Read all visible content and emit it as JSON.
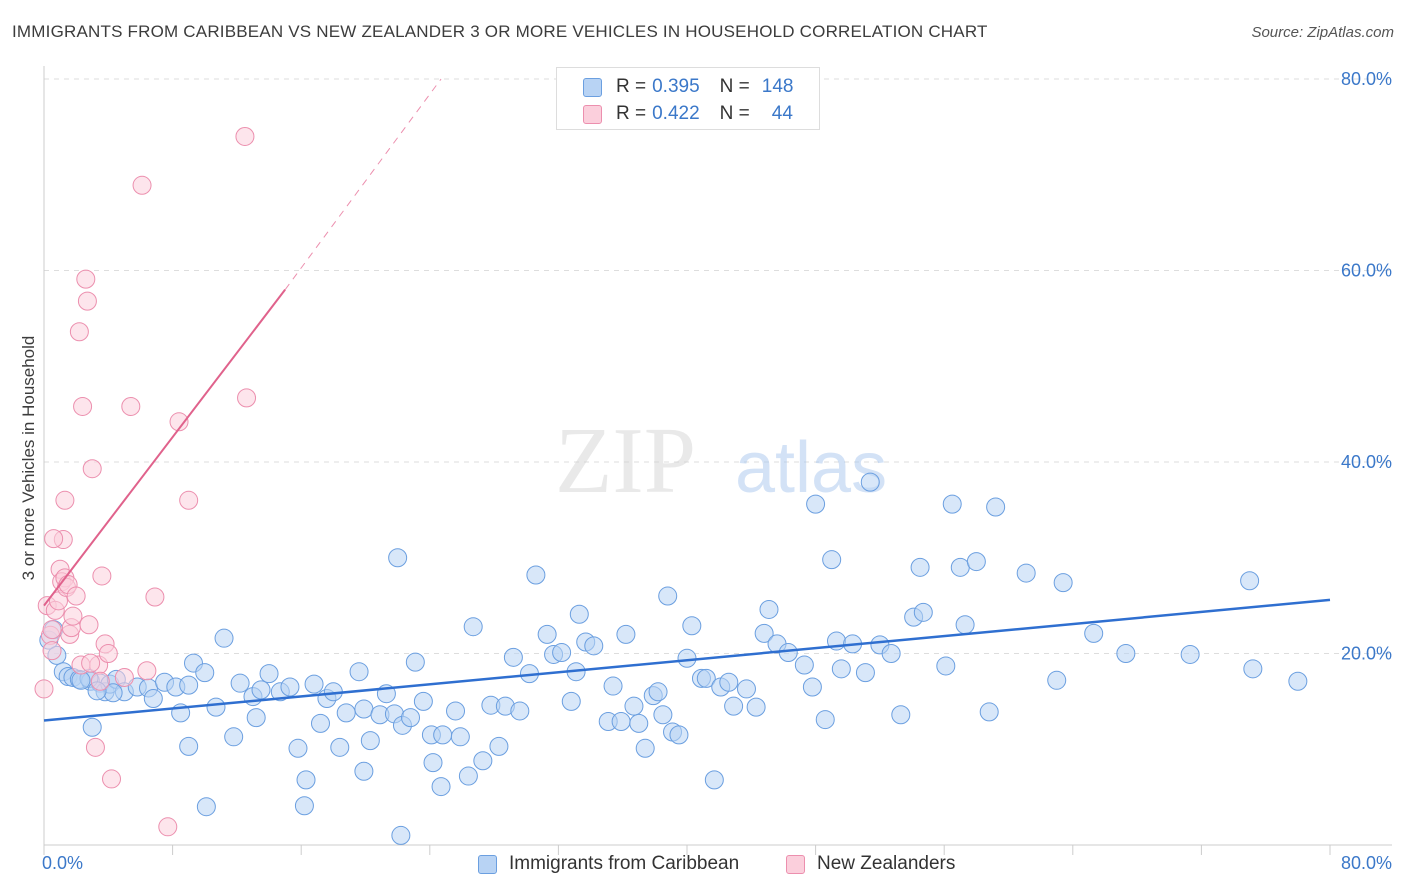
{
  "title": "IMMIGRANTS FROM CARIBBEAN VS NEW ZEALANDER 3 OR MORE VEHICLES IN HOUSEHOLD CORRELATION CHART",
  "source": "Source: ZipAtlas.com",
  "watermark": {
    "zip": "ZIP",
    "atlas": "atlas"
  },
  "legend": {
    "rows": [
      {
        "r_label": "R =",
        "r_value": "0.395",
        "n_label": "N =",
        "n_value": "148"
      },
      {
        "r_label": "R =",
        "r_value": "0.422",
        "n_label": "N =",
        "n_value": "44"
      }
    ]
  },
  "bottom_legend": {
    "series1": "Immigrants from Caribbean",
    "series2": "New Zealanders"
  },
  "colors": {
    "blue_fill": "#b8d3f4",
    "blue_stroke": "#6b9fe0",
    "blue_line": "#2f6fd0",
    "pink_fill": "#fbcfdc",
    "pink_stroke": "#ec8fae",
    "pink_line": "#e0628c",
    "tick_text": "#3b78c9"
  },
  "chart_data": {
    "type": "scatter",
    "title": "IMMIGRANTS FROM CARIBBEAN VS NEW ZEALANDER 3 OR MORE VEHICLES IN HOUSEHOLD CORRELATION CHART",
    "xlabel": "",
    "ylabel": "3 or more Vehicles in Household",
    "xlim": [
      0,
      80
    ],
    "ylim": [
      0,
      80
    ],
    "x_tick_labels": {
      "left": "0.0%",
      "right": "80.0%"
    },
    "y_ticks": [
      {
        "value": 20,
        "label": "20.0%"
      },
      {
        "value": 40,
        "label": "40.0%"
      },
      {
        "value": 60,
        "label": "60.0%"
      },
      {
        "value": 80,
        "label": "80.0%"
      }
    ],
    "grid": true,
    "legend_position": "top-center",
    "series": [
      {
        "name": "Immigrants from Caribbean",
        "R": 0.395,
        "N": 148,
        "trend": {
          "x": [
            0,
            80
          ],
          "y": [
            13.0,
            25.6
          ]
        },
        "points": [
          [
            0.3,
            21.4
          ],
          [
            0.6,
            22.5
          ],
          [
            0.8,
            19.8
          ],
          [
            1.2,
            18.1
          ],
          [
            1.5,
            17.6
          ],
          [
            1.8,
            17.5
          ],
          [
            2.2,
            17.3
          ],
          [
            2.9,
            17.1
          ],
          [
            3.5,
            16.9
          ],
          [
            3.8,
            16.0
          ],
          [
            4.1,
            16.8
          ],
          [
            4.5,
            17.3
          ],
          [
            5.0,
            16.0
          ],
          [
            5.8,
            16.5
          ],
          [
            6.5,
            16.4
          ],
          [
            3.0,
            12.3
          ],
          [
            2.8,
            17.4
          ],
          [
            2.3,
            17.2
          ],
          [
            4.3,
            15.9
          ],
          [
            3.3,
            16.1
          ],
          [
            6.8,
            15.3
          ],
          [
            7.5,
            17.0
          ],
          [
            8.2,
            16.5
          ],
          [
            9.0,
            16.7
          ],
          [
            9.3,
            19.0
          ],
          [
            10.0,
            18.0
          ],
          [
            10.7,
            14.4
          ],
          [
            11.2,
            21.6
          ],
          [
            11.8,
            11.3
          ],
          [
            12.2,
            16.9
          ],
          [
            13.0,
            15.5
          ],
          [
            13.5,
            16.2
          ],
          [
            14.0,
            17.9
          ],
          [
            13.2,
            13.3
          ],
          [
            14.7,
            16.0
          ],
          [
            15.3,
            16.5
          ],
          [
            15.8,
            10.1
          ],
          [
            16.8,
            16.8
          ],
          [
            17.2,
            12.7
          ],
          [
            17.6,
            15.3
          ],
          [
            18.4,
            10.2
          ],
          [
            18.8,
            13.8
          ],
          [
            19.6,
            18.1
          ],
          [
            19.9,
            14.2
          ],
          [
            20.3,
            10.9
          ],
          [
            20.9,
            13.6
          ],
          [
            21.3,
            15.8
          ],
          [
            21.8,
            13.7
          ],
          [
            22.0,
            30.0
          ],
          [
            22.3,
            12.5
          ],
          [
            22.8,
            13.3
          ],
          [
            23.1,
            19.1
          ],
          [
            23.6,
            15.0
          ],
          [
            24.1,
            11.5
          ],
          [
            24.8,
            11.5
          ],
          [
            25.6,
            14.0
          ],
          [
            25.9,
            11.3
          ],
          [
            26.4,
            7.2
          ],
          [
            26.7,
            22.8
          ],
          [
            27.3,
            8.8
          ],
          [
            27.8,
            14.6
          ],
          [
            28.3,
            10.3
          ],
          [
            28.7,
            14.5
          ],
          [
            29.2,
            19.6
          ],
          [
            29.6,
            14.0
          ],
          [
            30.2,
            17.9
          ],
          [
            30.6,
            28.2
          ],
          [
            31.3,
            22.0
          ],
          [
            31.7,
            19.9
          ],
          [
            32.2,
            20.1
          ],
          [
            32.8,
            15.0
          ],
          [
            33.1,
            18.1
          ],
          [
            33.3,
            24.1
          ],
          [
            33.7,
            21.2
          ],
          [
            34.2,
            20.8
          ],
          [
            35.1,
            12.9
          ],
          [
            35.4,
            16.6
          ],
          [
            35.9,
            12.9
          ],
          [
            36.2,
            22.0
          ],
          [
            36.7,
            14.5
          ],
          [
            37.0,
            12.7
          ],
          [
            37.4,
            10.1
          ],
          [
            37.9,
            15.6
          ],
          [
            38.2,
            16.0
          ],
          [
            38.5,
            13.6
          ],
          [
            38.8,
            26.0
          ],
          [
            39.1,
            11.8
          ],
          [
            39.5,
            11.5
          ],
          [
            40.0,
            19.5
          ],
          [
            40.3,
            22.9
          ],
          [
            40.9,
            17.4
          ],
          [
            41.2,
            17.4
          ],
          [
            41.7,
            6.8
          ],
          [
            42.1,
            16.5
          ],
          [
            42.6,
            17.0
          ],
          [
            42.9,
            14.5
          ],
          [
            43.7,
            16.3
          ],
          [
            44.3,
            14.4
          ],
          [
            44.8,
            22.1
          ],
          [
            45.1,
            24.6
          ],
          [
            45.6,
            21.0
          ],
          [
            46.3,
            20.1
          ],
          [
            47.3,
            18.8
          ],
          [
            47.8,
            16.5
          ],
          [
            48.0,
            35.6
          ],
          [
            48.6,
            13.1
          ],
          [
            49.0,
            29.8
          ],
          [
            49.3,
            21.3
          ],
          [
            49.6,
            18.4
          ],
          [
            50.3,
            21.0
          ],
          [
            51.1,
            18.0
          ],
          [
            51.4,
            37.9
          ],
          [
            52.0,
            20.9
          ],
          [
            52.7,
            20.0
          ],
          [
            53.3,
            13.6
          ],
          [
            54.1,
            23.8
          ],
          [
            54.5,
            29.0
          ],
          [
            54.7,
            24.3
          ],
          [
            56.1,
            18.7
          ],
          [
            56.5,
            35.6
          ],
          [
            57.0,
            29.0
          ],
          [
            57.3,
            23.0
          ],
          [
            58.0,
            29.6
          ],
          [
            58.8,
            13.9
          ],
          [
            59.2,
            35.3
          ],
          [
            61.1,
            28.4
          ],
          [
            63.0,
            17.2
          ],
          [
            63.4,
            27.4
          ],
          [
            65.3,
            22.1
          ],
          [
            67.3,
            20.0
          ],
          [
            71.3,
            19.9
          ],
          [
            75.0,
            27.6
          ],
          [
            75.2,
            18.4
          ],
          [
            78.0,
            17.1
          ],
          [
            16.2,
            4.1
          ],
          [
            16.3,
            6.8
          ],
          [
            18.0,
            16.0
          ],
          [
            19.9,
            7.7
          ],
          [
            22.2,
            1.0
          ],
          [
            24.2,
            8.6
          ],
          [
            24.7,
            6.1
          ],
          [
            8.5,
            13.8
          ],
          [
            10.1,
            4.0
          ],
          [
            9.0,
            10.3
          ]
        ]
      },
      {
        "name": "New Zealanders",
        "R": 0.422,
        "N": 44,
        "trend": {
          "x": [
            0,
            15
          ],
          "y": [
            25.0,
            58.0
          ],
          "dashed_extension": {
            "x": [
              15,
              24.7
            ],
            "y": [
              58.0,
              80.0
            ]
          }
        },
        "points": [
          [
            0.0,
            16.3
          ],
          [
            0.2,
            25.0
          ],
          [
            0.4,
            21.9
          ],
          [
            0.5,
            22.5
          ],
          [
            0.7,
            24.5
          ],
          [
            0.9,
            25.5
          ],
          [
            1.0,
            28.8
          ],
          [
            1.1,
            27.5
          ],
          [
            1.2,
            31.9
          ],
          [
            1.3,
            27.9
          ],
          [
            1.4,
            26.9
          ],
          [
            1.5,
            27.2
          ],
          [
            1.6,
            22.0
          ],
          [
            1.7,
            22.7
          ],
          [
            1.8,
            23.9
          ],
          [
            2.0,
            26.0
          ],
          [
            2.2,
            53.6
          ],
          [
            2.4,
            45.8
          ],
          [
            2.6,
            59.1
          ],
          [
            2.7,
            56.8
          ],
          [
            2.8,
            23.0
          ],
          [
            3.0,
            39.3
          ],
          [
            3.2,
            10.2
          ],
          [
            3.4,
            18.8
          ],
          [
            3.5,
            17.1
          ],
          [
            3.6,
            28.1
          ],
          [
            3.8,
            21.0
          ],
          [
            4.0,
            20.0
          ],
          [
            4.2,
            6.9
          ],
          [
            5.0,
            17.5
          ],
          [
            5.4,
            45.8
          ],
          [
            6.1,
            68.9
          ],
          [
            6.4,
            18.2
          ],
          [
            6.9,
            25.9
          ],
          [
            7.7,
            1.9
          ],
          [
            8.4,
            44.2
          ],
          [
            9.0,
            36.0
          ],
          [
            12.5,
            74.0
          ],
          [
            12.6,
            46.7
          ],
          [
            0.5,
            20.3
          ],
          [
            1.3,
            36.0
          ],
          [
            0.6,
            32.0
          ],
          [
            2.3,
            18.8
          ],
          [
            2.9,
            19.0
          ]
        ]
      }
    ]
  }
}
